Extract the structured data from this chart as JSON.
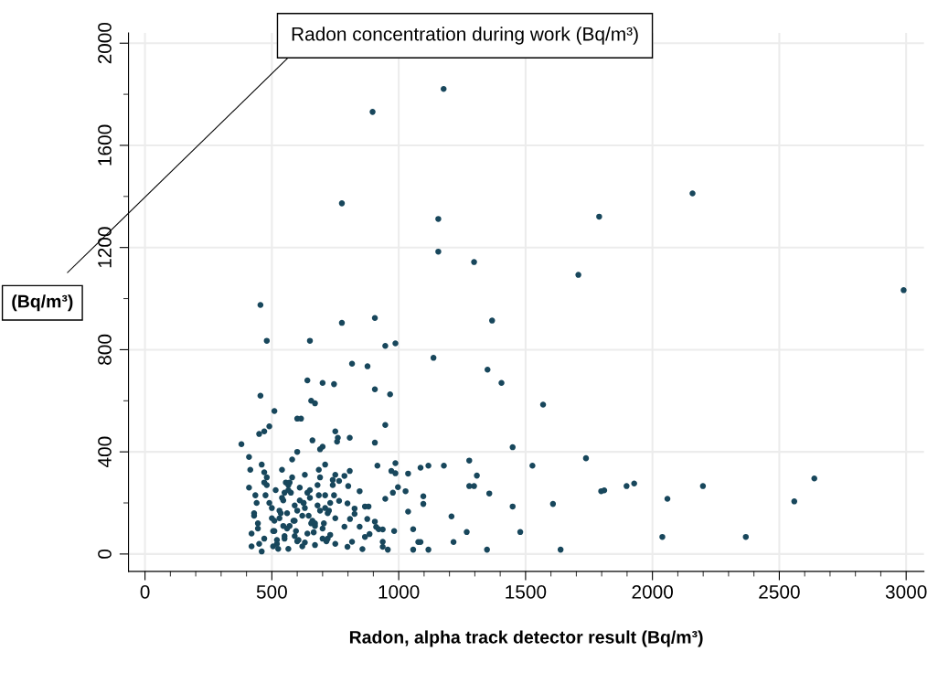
{
  "chart_data": {
    "type": "scatter",
    "title": "Radon concentration during work (Bq/m³)",
    "xlabel": "Radon, alpha track detector result (Bq/m³)",
    "ylabel": "(Bq/m³)",
    "x": [
      897,
      1177,
      776,
      1156,
      1790,
      2158,
      1156,
      1297,
      1708,
      2990,
      776,
      906,
      947,
      987,
      1368,
      816,
      877,
      1137,
      1350,
      1405,
      906,
      966,
      947,
      807,
      906,
      757,
      1449,
      1527,
      1278,
      1308,
      1278,
      1297,
      1357,
      1449,
      1479,
      1348,
      1268,
      1216,
      1208,
      1178,
      1117,
      1086,
      1037,
      1027,
      1097,
      1097,
      1037,
      1057,
      1077,
      1086,
      1057,
      1117,
      987,
      916,
      971,
      987,
      997,
      977,
      947,
      807,
      786,
      765,
      801,
      846,
      765,
      798,
      826,
      826,
      867,
      881,
      808,
      876,
      786,
      846,
      906,
      911,
      921,
      937,
      982,
      885,
      867,
      816,
      937,
      937,
      957,
      798,
      857,
      1898,
      1928,
      2059,
      2039,
      2199,
      2368,
      2559,
      2638,
      1810,
      1569,
      1738,
      1798,
      1608,
      1638,
      455,
      480,
      650,
      455,
      510,
      470,
      450,
      490,
      600,
      615,
      640,
      655,
      670,
      700,
      745,
      690,
      700,
      750,
      760,
      380,
      410,
      600,
      420,
      435,
      445,
      460,
      470,
      480,
      500,
      505,
      515,
      520,
      530,
      540,
      545,
      550,
      555,
      560,
      565,
      570,
      575,
      580,
      590,
      600,
      610,
      620,
      630,
      640,
      650,
      660,
      670,
      680,
      690,
      700,
      710,
      720,
      730,
      740,
      750,
      410,
      430,
      450,
      470,
      490,
      510,
      530,
      550,
      570,
      590,
      610,
      630,
      650,
      670,
      690,
      710,
      730,
      750,
      420,
      440,
      460,
      480,
      500,
      520,
      540,
      560,
      580,
      600,
      620,
      640,
      660,
      680,
      700,
      720,
      740,
      415,
      445,
      475,
      505,
      535,
      565,
      595,
      625,
      655,
      685,
      715,
      745,
      430,
      470,
      510,
      550,
      590,
      630,
      670,
      710,
      750,
      525,
      545,
      565,
      585,
      605,
      625,
      645,
      665,
      685,
      705,
      725
    ],
    "values": [
      1731,
      1821,
      1373,
      1312,
      1321,
      1412,
      1184,
      1143,
      1093,
      1033,
      905,
      924,
      815,
      825,
      914,
      745,
      735,
      768,
      722,
      670,
      645,
      625,
      505,
      455,
      436,
      440,
      418,
      346,
      366,
      307,
      266,
      266,
      237,
      186,
      86,
      17,
      86,
      47,
      147,
      346,
      346,
      338,
      315,
      246,
      226,
      196,
      166,
      97,
      47,
      47,
      17,
      17,
      356,
      346,
      325,
      316,
      262,
      240,
      216,
      325,
      306,
      286,
      266,
      246,
      208,
      198,
      178,
      157,
      186,
      186,
      137,
      137,
      107,
      107,
      127,
      106,
      97,
      96,
      90,
      78,
      67,
      48,
      48,
      28,
      17,
      28,
      19,
      266,
      276,
      216,
      67,
      266,
      67,
      206,
      296,
      249,
      585,
      375,
      246,
      196,
      17,
      975,
      835,
      835,
      620,
      560,
      480,
      470,
      500,
      530,
      530,
      680,
      600,
      590,
      670,
      665,
      410,
      420,
      480,
      455,
      430,
      380,
      400,
      30,
      230,
      120,
      350,
      60,
      300,
      180,
      90,
      250,
      40,
      140,
      330,
      210,
      70,
      280,
      160,
      20,
      110,
      240,
      370,
      190,
      50,
      260,
      150,
      310,
      80,
      220,
      130,
      35,
      270,
      170,
      100,
      350,
      60,
      200,
      290,
      140,
      260,
      150,
      40,
      320,
      200,
      90,
      170,
      60,
      280,
      130,
      210,
      45,
      250,
      120,
      300,
      180,
      75,
      310,
      80,
      200,
      10,
      270,
      140,
      55,
      220,
      100,
      300,
      170,
      30,
      240,
      445,
      190,
      60,
      160,
      270,
      330,
      100,
      230,
      30,
      160,
      250,
      90,
      200,
      120,
      330,
      50,
      230,
      160,
      280,
      130,
      240,
      70,
      180,
      110,
      230,
      40,
      20,
      110,
      270,
      130,
      55,
      200,
      150,
      85,
      230,
      120,
      170
    ],
    "color": "#18475c",
    "marker": "circle",
    "grid": true,
    "xlim": [
      -65,
      3070
    ],
    "xticks": [
      0,
      500,
      1000,
      1500,
      2000,
      2500,
      3000,
      {
        "value": 100,
        "label": null
      },
      {
        "value": 200,
        "label": null
      },
      {
        "value": 300,
        "label": null
      },
      {
        "value": 400,
        "label": null
      },
      {
        "value": 600,
        "label": null
      },
      {
        "value": 700,
        "label": null
      },
      {
        "value": 800,
        "label": null
      },
      {
        "value": 900,
        "label": null
      },
      {
        "value": 1100,
        "label": null
      },
      {
        "value": 1200,
        "label": null
      },
      {
        "value": 1300,
        "label": null
      },
      {
        "value": 1400,
        "label": null
      },
      {
        "value": 1600,
        "label": null
      },
      {
        "value": 1700,
        "label": null
      },
      {
        "value": 1800,
        "label": null
      },
      {
        "value": 1900,
        "label": null
      },
      {
        "value": 2100,
        "label": null
      },
      {
        "value": 2200,
        "label": null
      },
      {
        "value": 2300,
        "label": null
      },
      {
        "value": 2400,
        "label": null
      },
      {
        "value": 2600,
        "label": null
      },
      {
        "value": 2700,
        "label": null
      },
      {
        "value": 2800,
        "label": null
      },
      {
        "value": 2900,
        "label": null
      }
    ],
    "ylim": [
      -68,
      2040
    ],
    "yticks": [
      0,
      400,
      800,
      1200,
      1600,
      2000,
      {
        "value": 200,
        "label": null
      },
      {
        "value": 600,
        "label": null
      },
      {
        "value": 1000,
        "label": null
      },
      {
        "value": 1400,
        "label": null
      },
      {
        "value": 1800,
        "label": null
      }
    ]
  }
}
